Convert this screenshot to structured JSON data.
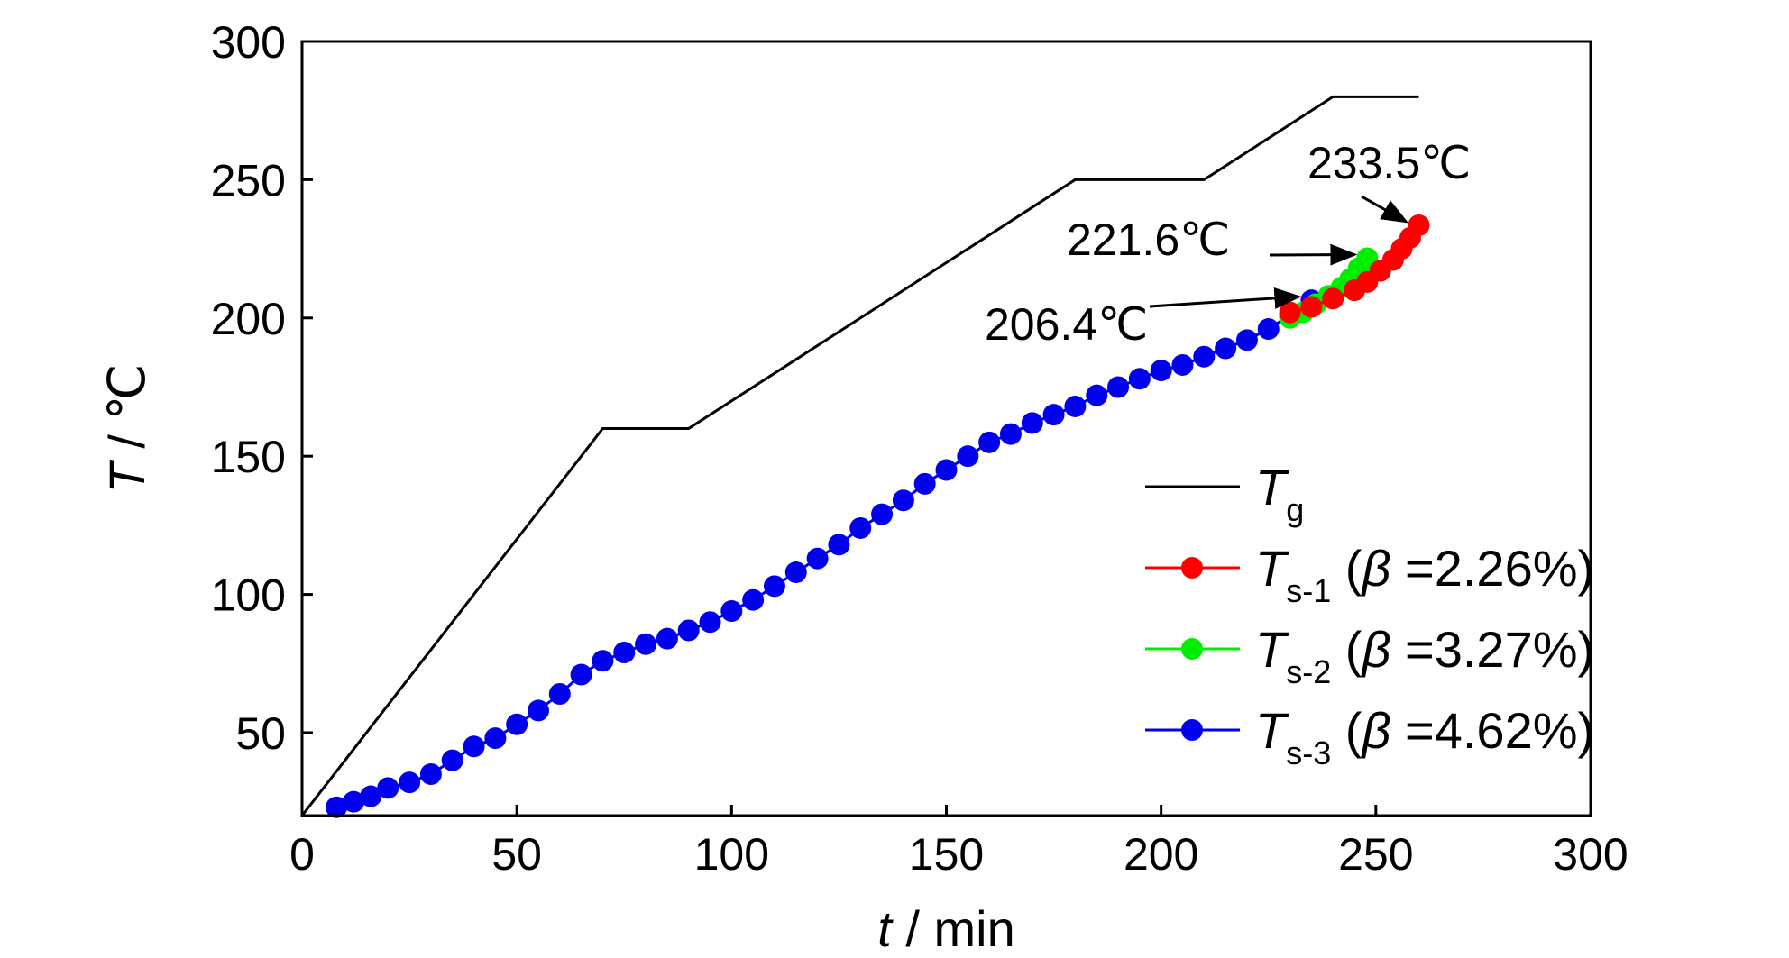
{
  "chart_data": {
    "type": "line",
    "xlabel": {
      "var": "t",
      "unit": " / min"
    },
    "ylabel": {
      "var": "T",
      "unit": " / ℃"
    },
    "xlim": [
      0,
      300
    ],
    "ylim": [
      20,
      300
    ],
    "xticks": [
      "0",
      "50",
      "100",
      "150",
      "200",
      "250",
      "300"
    ],
    "yticks": [
      "50",
      "100",
      "150",
      "200",
      "250",
      "300"
    ],
    "grid": false,
    "legend_position": "bottom-right",
    "series": [
      {
        "key": "tg",
        "legend": {
          "main": "T",
          "sub": "g",
          "rest": ""
        },
        "color": "#000000",
        "marker": "none",
        "points": [
          [
            0,
            20
          ],
          [
            70,
            160
          ],
          [
            90,
            160
          ],
          [
            180,
            250
          ],
          [
            210,
            250
          ],
          [
            240,
            280
          ],
          [
            260,
            280
          ]
        ]
      },
      {
        "key": "ts1",
        "legend": {
          "main": "T",
          "sub": "s-1",
          "pre": " (",
          "beta": "β",
          "rest": " =2.26%)"
        },
        "color": "#ff0000",
        "marker": "circle",
        "points": [
          [
            230,
            202
          ],
          [
            235,
            204
          ],
          [
            240,
            207
          ],
          [
            245,
            210
          ],
          [
            248,
            213
          ],
          [
            251,
            217
          ],
          [
            254,
            221
          ],
          [
            256,
            225
          ],
          [
            258,
            229
          ],
          [
            260,
            233.5
          ]
        ]
      },
      {
        "key": "ts2",
        "legend": {
          "main": "T",
          "sub": "s-2",
          "pre": " (",
          "beta": "β",
          "rest": " =3.27%)"
        },
        "color": "#00ee00",
        "marker": "circle",
        "points": [
          [
            230,
            200
          ],
          [
            233,
            202
          ],
          [
            236,
            205
          ],
          [
            239,
            208
          ],
          [
            242,
            211
          ],
          [
            244,
            214
          ],
          [
            246,
            218
          ],
          [
            248,
            221.6
          ]
        ]
      },
      {
        "key": "ts3",
        "legend": {
          "main": "T",
          "sub": "s-3",
          "pre": " (",
          "beta": "β",
          "rest": " =4.62%)"
        },
        "color": "#0000ee",
        "marker": "circle",
        "points": [
          [
            8,
            23
          ],
          [
            12,
            25
          ],
          [
            16,
            27
          ],
          [
            20,
            30
          ],
          [
            25,
            32
          ],
          [
            30,
            35
          ],
          [
            35,
            40
          ],
          [
            40,
            45
          ],
          [
            45,
            48
          ],
          [
            50,
            53
          ],
          [
            55,
            58
          ],
          [
            60,
            64
          ],
          [
            65,
            71
          ],
          [
            70,
            76
          ],
          [
            75,
            79
          ],
          [
            80,
            82
          ],
          [
            85,
            84
          ],
          [
            90,
            87
          ],
          [
            95,
            90
          ],
          [
            100,
            94
          ],
          [
            105,
            98
          ],
          [
            110,
            103
          ],
          [
            115,
            108
          ],
          [
            120,
            113
          ],
          [
            125,
            118
          ],
          [
            130,
            124
          ],
          [
            135,
            129
          ],
          [
            140,
            134
          ],
          [
            145,
            140
          ],
          [
            150,
            145
          ],
          [
            155,
            150
          ],
          [
            160,
            155
          ],
          [
            165,
            158
          ],
          [
            170,
            162
          ],
          [
            175,
            165
          ],
          [
            180,
            168
          ],
          [
            185,
            172
          ],
          [
            190,
            175
          ],
          [
            195,
            178
          ],
          [
            200,
            181
          ],
          [
            205,
            183
          ],
          [
            210,
            186
          ],
          [
            215,
            189
          ],
          [
            220,
            192
          ],
          [
            225,
            196
          ],
          [
            230,
            201
          ],
          [
            235,
            206.4
          ]
        ]
      }
    ],
    "annotations": [
      {
        "text": "233.5℃",
        "x": 260,
        "y": 233.5
      },
      {
        "text": "221.6℃",
        "x": 248,
        "y": 221.6
      },
      {
        "text": "206.4℃",
        "x": 235,
        "y": 206.4
      }
    ]
  }
}
